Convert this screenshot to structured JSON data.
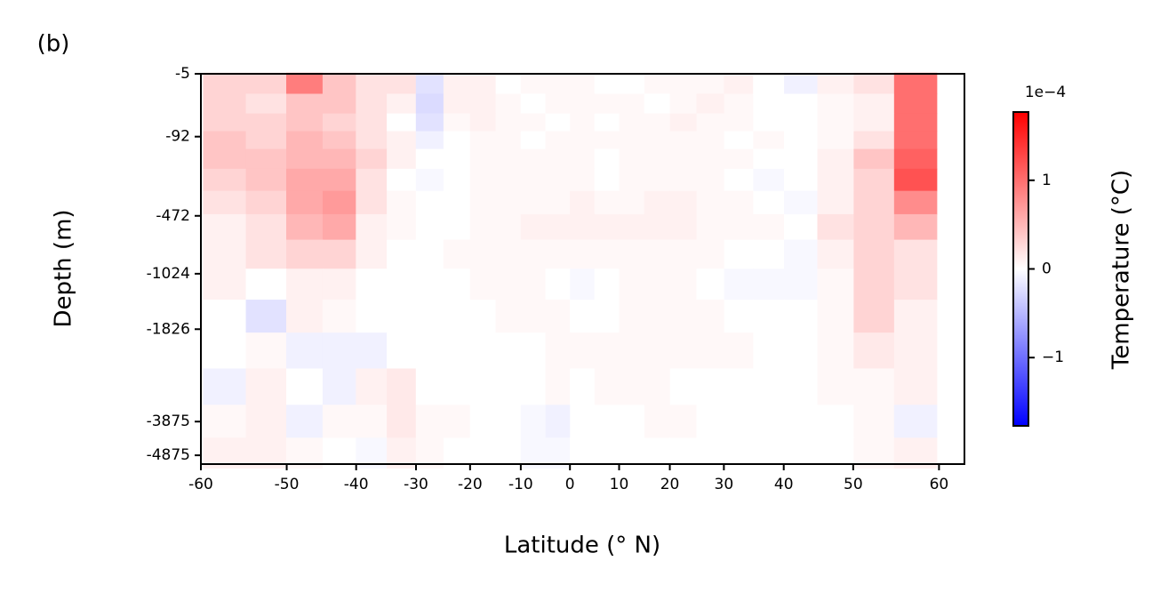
{
  "chart_data": {
    "type": "heatmap",
    "panel_label": "(b)",
    "xlabel": "Latitude (° N)",
    "ylabel": "Depth (m)",
    "xscale": "mercator",
    "yscale": "power",
    "yexponent": 0.37,
    "xlim": [
      -60,
      62.5
    ],
    "ylim": [
      -5,
      -5160
    ],
    "xticks": [
      -60,
      -50,
      -40,
      -30,
      -20,
      -10,
      0,
      10,
      20,
      30,
      40,
      50,
      60
    ],
    "yticks": [
      -5,
      -92,
      -472,
      -1024,
      -1826,
      -3875,
      -4875
    ],
    "x": [
      -57.5,
      -52.5,
      -47.5,
      -42.5,
      -37.5,
      -32.5,
      -27.5,
      -22.5,
      -17.5,
      -12.5,
      -7.5,
      -2.5,
      2.5,
      7.5,
      12.5,
      17.5,
      22.5,
      27.5,
      32.5,
      37.5,
      42.5,
      47.5,
      52.5,
      57.5
    ],
    "y": [
      -10,
      -30,
      -60,
      -100,
      -160,
      -250,
      -380,
      -550,
      -800,
      -1150,
      -1600,
      -2200,
      -3000,
      -3900,
      -4800
    ],
    "values": [
      [
        0.3,
        0.3,
        0.9,
        0.4,
        0.2,
        0.2,
        -0.2,
        0.1,
        0.1,
        0,
        0.05,
        0.05,
        0.05,
        0,
        0,
        0.05,
        0.05,
        0.05,
        0.1,
        0,
        -0.1,
        0.1,
        0.2,
        1.0
      ],
      [
        0.3,
        0.2,
        0.4,
        0.4,
        0.2,
        0.1,
        -0.25,
        0.1,
        0.1,
        0.05,
        0,
        0.05,
        0.05,
        0.05,
        0.05,
        0,
        0.05,
        0.1,
        0.05,
        0,
        0,
        0.05,
        0.1,
        1.0
      ],
      [
        0.3,
        0.3,
        0.4,
        0.3,
        0.2,
        0,
        -0.2,
        0.05,
        0.1,
        0.05,
        0.05,
        0,
        0.05,
        0,
        0.05,
        0.05,
        0.1,
        0.05,
        0.05,
        0,
        0,
        0.05,
        0.1,
        1.0
      ],
      [
        0.4,
        0.3,
        0.5,
        0.4,
        0.2,
        0.1,
        -0.1,
        0,
        0.05,
        0.05,
        0,
        0.05,
        0.05,
        0.05,
        0.05,
        0.05,
        0.05,
        0.05,
        0,
        0.05,
        0,
        0.05,
        0.2,
        1.0
      ],
      [
        0.4,
        0.4,
        0.5,
        0.5,
        0.3,
        0.1,
        0,
        0,
        0.05,
        0.05,
        0.05,
        0.05,
        0.05,
        0,
        0.05,
        0.05,
        0.05,
        0.05,
        0.05,
        0,
        0,
        0.1,
        0.4,
        1.1
      ],
      [
        0.3,
        0.4,
        0.6,
        0.6,
        0.2,
        0,
        -0.05,
        0,
        0.05,
        0.05,
        0.05,
        0.05,
        0.05,
        0,
        0.05,
        0.05,
        0.05,
        0.05,
        0,
        -0.05,
        0,
        0.1,
        0.3,
        1.2
      ],
      [
        0.2,
        0.3,
        0.6,
        0.7,
        0.2,
        0.05,
        0,
        0,
        0.05,
        0.05,
        0.05,
        0.05,
        0.1,
        0.05,
        0.05,
        0.1,
        0.1,
        0.05,
        0.05,
        0,
        -0.05,
        0.1,
        0.3,
        0.8
      ],
      [
        0.1,
        0.2,
        0.5,
        0.6,
        0.1,
        0.05,
        0,
        0,
        0.05,
        0.05,
        0.1,
        0.1,
        0.1,
        0.1,
        0.1,
        0.1,
        0.1,
        0.05,
        0.05,
        0.05,
        0,
        0.2,
        0.3,
        0.5
      ],
      [
        0.1,
        0.2,
        0.3,
        0.3,
        0.1,
        0,
        0,
        0.05,
        0.05,
        0.05,
        0.05,
        0.05,
        0.05,
        0.05,
        0.05,
        0.05,
        0.05,
        0.05,
        0,
        0,
        -0.05,
        0.1,
        0.3,
        0.2
      ],
      [
        0.1,
        0,
        0.1,
        0.1,
        0,
        0,
        0,
        0,
        0.05,
        0.05,
        0.05,
        0,
        -0.05,
        0,
        0.05,
        0.05,
        0.05,
        0,
        -0.05,
        -0.05,
        -0.05,
        0.05,
        0.3,
        0.2
      ],
      [
        0,
        -0.2,
        0.1,
        0.05,
        0,
        0,
        0,
        0,
        0,
        0.05,
        0.05,
        0.05,
        0,
        0,
        0.05,
        0.05,
        0.05,
        0.05,
        0,
        0,
        0,
        0.05,
        0.3,
        0.1
      ],
      [
        0,
        0.05,
        -0.1,
        -0.1,
        -0.1,
        0,
        0,
        0,
        0,
        0,
        0,
        0.05,
        0.05,
        0.05,
        0.05,
        0.05,
        0.05,
        0.05,
        0.05,
        0,
        0,
        0.05,
        0.15,
        0.1
      ],
      [
        -0.1,
        0.1,
        0,
        -0.1,
        0.1,
        0.15,
        0,
        0,
        0,
        0,
        0,
        0.05,
        0,
        0.05,
        0.05,
        0.05,
        0,
        0,
        0,
        0,
        0,
        0.05,
        0.05,
        0.1
      ],
      [
        0.05,
        0.1,
        -0.1,
        0.05,
        0.05,
        0.15,
        0.05,
        0.05,
        0,
        0,
        -0.05,
        -0.1,
        0,
        0,
        0,
        0.05,
        0.05,
        0,
        0,
        0,
        0,
        0,
        0.05,
        -0.1
      ],
      [
        0.1,
        0.1,
        0.05,
        0,
        -0.05,
        0.1,
        0.05,
        0,
        0,
        0,
        -0.05,
        -0.05,
        0,
        0,
        0,
        0,
        0,
        0,
        0,
        0,
        0,
        0,
        0.05,
        0.1
      ]
    ],
    "colormap": "bwr",
    "clim": [
      -1.77,
      1.77
    ],
    "colorbar_label": "Temperature (°C)",
    "colorbar_offset_label": "1e−4",
    "colorbar_ticks": [
      {
        "value": -1,
        "label": "−1"
      },
      0,
      1
    ]
  }
}
